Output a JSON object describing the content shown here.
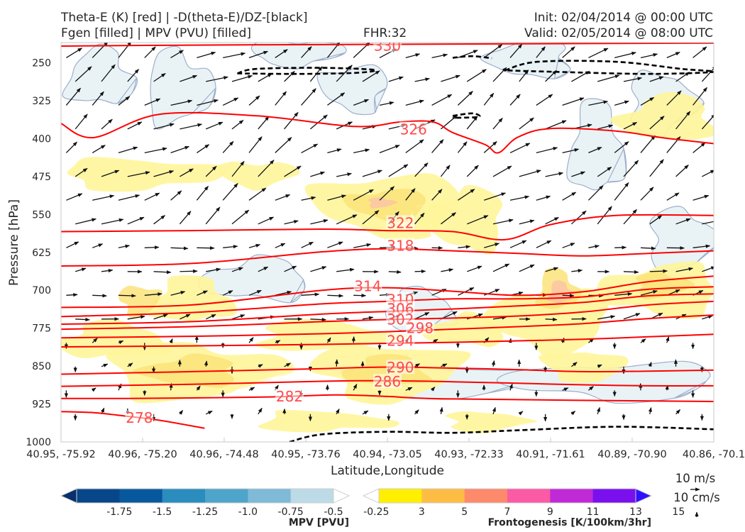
{
  "header": {
    "line1_left": "Theta-E (K) [red] | -D(theta-E)/DZ-[black]",
    "line2_left": "Fgen [filled] | MPV (PVU) [filled]",
    "fhr": "FHR:32",
    "init": "Init: 02/04/2014 @ 00:00 UTC",
    "valid": "Valid: 02/05/2014 @ 08:00 UTC"
  },
  "chart_data": {
    "type": "cross-section",
    "xlabel": "Latitude,Longitude",
    "ylabel": "Pressure [hPa]",
    "x_ticks": [
      "40.95, -75.92",
      "40.96, -75.20",
      "40.96, -74.48",
      "40.95, -73.76",
      "40.94, -73.05",
      "40.93, -72.33",
      "40.91, -71.61",
      "40.89, -70.90",
      "40.86, -70.1"
    ],
    "y_ticks": [
      250,
      325,
      400,
      475,
      550,
      625,
      700,
      775,
      850,
      925,
      1000
    ],
    "y_range": [
      1000,
      210
    ],
    "theta_e": {
      "color": "#ff0000",
      "contours": [
        {
          "label": "330",
          "x": [
            0,
            0.2,
            0.4,
            0.6,
            0.8,
            1
          ],
          "p": [
            217,
            215,
            214,
            213,
            212,
            211
          ],
          "label_at": [
            0.5,
            216
          ]
        },
        {
          "label": "326",
          "x": [
            0,
            0.05,
            0.15,
            0.3,
            0.45,
            0.52,
            0.57,
            0.6,
            0.65,
            0.67,
            0.7,
            0.75,
            0.85,
            0.92,
            1
          ],
          "p": [
            370,
            398,
            352,
            355,
            376,
            367,
            367,
            388,
            412,
            428,
            397,
            380,
            385,
            398,
            410
          ],
          "label_at": [
            0.54,
            382
          ]
        },
        {
          "label": "322",
          "x": [
            0,
            0.2,
            0.4,
            0.5,
            0.6,
            0.68,
            0.75,
            0.85,
            1
          ],
          "p": [
            584,
            582,
            579,
            582,
            584,
            600,
            570,
            552,
            552
          ],
          "label_at": [
            0.52,
            567
          ]
        },
        {
          "label": "318",
          "x": [
            0,
            0.2,
            0.4,
            0.5,
            0.6,
            0.7,
            0.8,
            0.9,
            1
          ],
          "p": [
            652,
            647,
            624,
            618,
            622,
            627,
            632,
            627,
            622
          ],
          "label_at": [
            0.52,
            612
          ]
        },
        {
          "label": "314",
          "x": [
            0,
            0.2,
            0.4,
            0.5,
            0.6,
            0.7,
            0.8,
            0.9,
            1
          ],
          "p": [
            734,
            729,
            700,
            695,
            702,
            710,
            703,
            683,
            672
          ],
          "label_at": [
            0.47,
            692
          ]
        },
        {
          "label": "310",
          "x": [
            0,
            0.2,
            0.4,
            0.5,
            0.6,
            0.7,
            0.8,
            0.9,
            1
          ],
          "p": [
            752,
            744,
            727,
            722,
            717,
            717,
            713,
            698,
            693
          ],
          "label_at": [
            0.52,
            719
          ]
        },
        {
          "label": "306",
          "x": [
            0,
            0.2,
            0.4,
            0.5,
            0.6,
            0.7,
            0.8,
            0.9,
            1
          ],
          "p": [
            767,
            762,
            747,
            742,
            737,
            731,
            724,
            711,
            707
          ],
          "label_at": [
            0.52,
            737
          ]
        },
        {
          "label": "302",
          "x": [
            0,
            0.2,
            0.4,
            0.5,
            0.6,
            0.7,
            0.8,
            0.9,
            1
          ],
          "p": [
            777,
            772,
            762,
            758,
            755,
            751,
            743,
            729,
            722
          ],
          "label_at": [
            0.52,
            758
          ]
        },
        {
          "label": "298",
          "x": [
            0,
            0.2,
            0.4,
            0.5,
            0.6,
            0.7,
            0.8,
            0.9,
            1
          ],
          "p": [
            794,
            791,
            786,
            782,
            777,
            772,
            766,
            756,
            749
          ],
          "label_at": [
            0.55,
            775
          ]
        },
        {
          "label": "294",
          "x": [
            0,
            0.2,
            0.4,
            0.5,
            0.6,
            0.7,
            0.8,
            0.9,
            1
          ],
          "p": [
            812,
            810,
            807,
            805,
            803,
            800,
            797,
            792,
            787
          ],
          "label_at": [
            0.52,
            800
          ]
        },
        {
          "label": "290",
          "x": [
            0,
            0.2,
            0.4,
            0.5,
            0.6,
            0.7,
            0.8,
            0.9,
            1
          ],
          "p": [
            866,
            861,
            855,
            852,
            854,
            857,
            861,
            860,
            858
          ],
          "label_at": [
            0.52,
            853
          ]
        },
        {
          "label": "286",
          "x": [
            0,
            0.2,
            0.4,
            0.5,
            0.6,
            0.7,
            0.8,
            0.9,
            1
          ],
          "p": [
            890,
            886,
            880,
            879,
            881,
            884,
            887,
            889,
            889
          ],
          "label_at": [
            0.5,
            881
          ]
        },
        {
          "label": "282",
          "x": [
            0,
            0.1,
            0.2,
            0.32,
            0.42,
            0.5,
            0.6,
            1
          ],
          "p": [
            914,
            914,
            913,
            911,
            907,
            910,
            915,
            920
          ],
          "label_at": [
            0.35,
            910
          ]
        },
        {
          "label": "278",
          "x": [
            0,
            0.05,
            0.1,
            0.15,
            0.22
          ],
          "p": [
            940,
            942,
            949,
            957,
            973
          ],
          "label_at": [
            0.12,
            952
          ]
        }
      ]
    },
    "mpv_colorbar": {
      "label": "MPV [PVU]",
      "ticks": [
        "-1.75",
        "-1.5",
        "-1.25",
        "-1.0",
        "-0.75",
        "-0.5",
        "-0.25"
      ],
      "colors": [
        "#08306b",
        "#08468a",
        "#08589e",
        "#2b8cbe",
        "#4ea4c9",
        "#7fbad6",
        "#bcdbe6",
        "#ffffff"
      ]
    },
    "fgen_colorbar": {
      "label": "Frontogenesis [K/100km/3hr]",
      "ticks": [
        "3",
        "5",
        "7",
        "9",
        "11",
        "13",
        "15"
      ],
      "colors": [
        "#ffffff",
        "#ffef00",
        "#fdbd45",
        "#fd8a6a",
        "#fb5aa4",
        "#c02ad6",
        "#7a10ee",
        "#3010ff"
      ]
    },
    "vector_key": {
      "horizontal": "10 m/s",
      "vertical": "10 cm/s"
    },
    "shading": {
      "fgen_color": "#fff59a",
      "fgen_strong": "#fce37a",
      "fgen_peak": "#fbc6a4",
      "mpv_color": "#e9f3f6",
      "mpv_outline": "#9eaecb"
    }
  }
}
